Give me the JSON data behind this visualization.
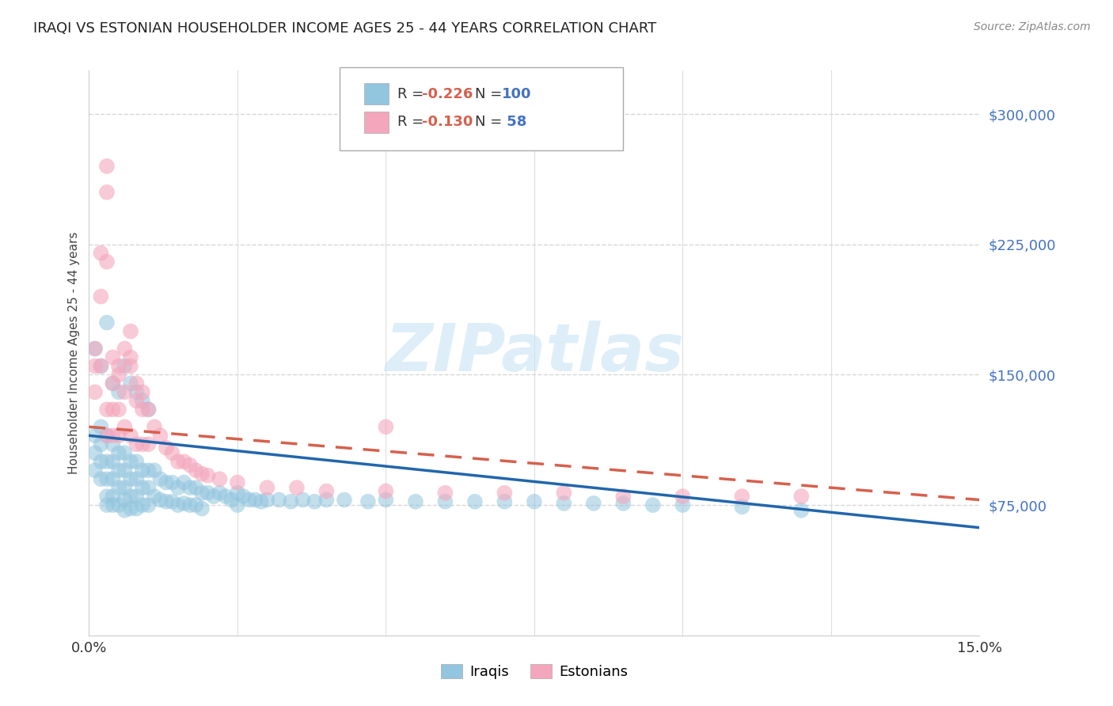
{
  "title": "IRAQI VS ESTONIAN HOUSEHOLDER INCOME AGES 25 - 44 YEARS CORRELATION CHART",
  "source": "Source: ZipAtlas.com",
  "ylabel": "Householder Income Ages 25 - 44 years",
  "xlim": [
    0.0,
    0.15
  ],
  "ylim": [
    0,
    325000
  ],
  "yticks": [
    75000,
    150000,
    225000,
    300000
  ],
  "ytick_labels": [
    "$75,000",
    "$150,000",
    "$225,000",
    "$300,000"
  ],
  "iraqis_color": "#92c5de",
  "estonians_color": "#f4a6bc",
  "iraqis_line_color": "#2166ac",
  "estonians_line_color": "#d6604d",
  "iraqis_R": -0.226,
  "iraqis_N": 100,
  "estonians_R": -0.13,
  "estonians_N": 58,
  "background_color": "#ffffff",
  "grid_color": "#cccccc",
  "title_color": "#222222",
  "source_color": "#888888",
  "ytick_color": "#4472c4",
  "R_color": "#d6604d",
  "N_color": "#4472c4",
  "iraqis_x": [
    0.001,
    0.001,
    0.001,
    0.002,
    0.002,
    0.002,
    0.002,
    0.003,
    0.003,
    0.003,
    0.003,
    0.003,
    0.004,
    0.004,
    0.004,
    0.004,
    0.004,
    0.005,
    0.005,
    0.005,
    0.005,
    0.006,
    0.006,
    0.006,
    0.006,
    0.006,
    0.007,
    0.007,
    0.007,
    0.007,
    0.008,
    0.008,
    0.008,
    0.008,
    0.009,
    0.009,
    0.009,
    0.01,
    0.01,
    0.01,
    0.011,
    0.011,
    0.012,
    0.012,
    0.013,
    0.013,
    0.014,
    0.014,
    0.015,
    0.015,
    0.016,
    0.016,
    0.017,
    0.017,
    0.018,
    0.018,
    0.019,
    0.019,
    0.02,
    0.021,
    0.022,
    0.023,
    0.024,
    0.025,
    0.025,
    0.026,
    0.027,
    0.028,
    0.029,
    0.03,
    0.032,
    0.034,
    0.036,
    0.038,
    0.04,
    0.043,
    0.047,
    0.05,
    0.055,
    0.06,
    0.065,
    0.07,
    0.075,
    0.08,
    0.085,
    0.09,
    0.095,
    0.1,
    0.11,
    0.12,
    0.001,
    0.002,
    0.003,
    0.004,
    0.005,
    0.006,
    0.007,
    0.008,
    0.009,
    0.01
  ],
  "iraqis_y": [
    115000,
    105000,
    95000,
    120000,
    110000,
    100000,
    90000,
    115000,
    100000,
    90000,
    80000,
    75000,
    110000,
    100000,
    90000,
    80000,
    75000,
    105000,
    95000,
    85000,
    75000,
    105000,
    95000,
    85000,
    78000,
    72000,
    100000,
    90000,
    80000,
    73000,
    100000,
    90000,
    80000,
    73000,
    95000,
    85000,
    75000,
    95000,
    85000,
    75000,
    95000,
    80000,
    90000,
    78000,
    88000,
    77000,
    88000,
    77000,
    85000,
    75000,
    88000,
    76000,
    85000,
    75000,
    85000,
    75000,
    82000,
    73000,
    82000,
    80000,
    82000,
    80000,
    78000,
    82000,
    75000,
    80000,
    78000,
    78000,
    77000,
    78000,
    78000,
    77000,
    78000,
    77000,
    78000,
    78000,
    77000,
    78000,
    77000,
    77000,
    77000,
    77000,
    77000,
    76000,
    76000,
    76000,
    75000,
    75000,
    74000,
    72000,
    165000,
    155000,
    180000,
    145000,
    140000,
    155000,
    145000,
    140000,
    135000,
    130000
  ],
  "estonians_x": [
    0.001,
    0.001,
    0.002,
    0.002,
    0.003,
    0.003,
    0.003,
    0.003,
    0.004,
    0.004,
    0.004,
    0.005,
    0.005,
    0.005,
    0.006,
    0.006,
    0.007,
    0.007,
    0.007,
    0.008,
    0.008,
    0.009,
    0.009,
    0.01,
    0.01,
    0.011,
    0.012,
    0.013,
    0.014,
    0.015,
    0.016,
    0.017,
    0.018,
    0.019,
    0.02,
    0.022,
    0.025,
    0.03,
    0.035,
    0.04,
    0.05,
    0.06,
    0.07,
    0.08,
    0.09,
    0.1,
    0.11,
    0.12,
    0.05,
    0.001,
    0.002,
    0.003,
    0.004,
    0.005,
    0.006,
    0.007,
    0.008,
    0.009
  ],
  "estonians_y": [
    155000,
    140000,
    195000,
    155000,
    270000,
    255000,
    130000,
    115000,
    145000,
    130000,
    115000,
    150000,
    130000,
    115000,
    140000,
    120000,
    175000,
    160000,
    115000,
    135000,
    110000,
    130000,
    110000,
    130000,
    110000,
    120000,
    115000,
    108000,
    105000,
    100000,
    100000,
    98000,
    95000,
    93000,
    92000,
    90000,
    88000,
    85000,
    85000,
    83000,
    83000,
    82000,
    82000,
    82000,
    80000,
    80000,
    80000,
    80000,
    120000,
    165000,
    220000,
    215000,
    160000,
    155000,
    165000,
    155000,
    145000,
    140000
  ],
  "iraqis_line_x0": 0.0,
  "iraqis_line_x1": 0.15,
  "iraqis_line_y0": 115000,
  "iraqis_line_y1": 62000,
  "estonians_line_x0": 0.0,
  "estonians_line_x1": 0.15,
  "estonians_line_y0": 120000,
  "estonians_line_y1": 78000
}
